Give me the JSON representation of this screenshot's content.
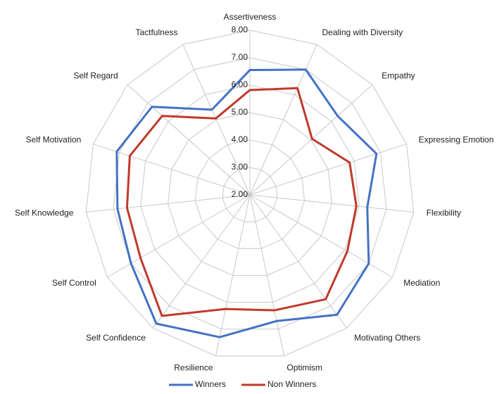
{
  "chart_data": {
    "type": "radar",
    "categories": [
      "Assertiveness",
      "Dealing with Diversity",
      "Empathy",
      "Expressing Emotion",
      "Flexibility",
      "Mediation",
      "Motivating Others",
      "Optimism",
      "Resilience",
      "Self Confidence",
      "Self Control",
      "Self Knowledge",
      "Self Motivation",
      "Self Regard",
      "Tactfulness"
    ],
    "series": [
      {
        "name": "Winners",
        "color": "#4472c4",
        "values": [
          6.55,
          7.0,
          6.3,
          6.85,
          6.3,
          7.0,
          7.4,
          6.7,
          7.3,
          7.8,
          7.0,
          6.85,
          7.1,
          6.8,
          5.4
        ]
      },
      {
        "name": "Non Winners",
        "color": "#c0392b",
        "values": [
          5.82,
          6.26,
          5.05,
          5.82,
          5.9,
          6.1,
          6.7,
          6.3,
          6.25,
          7.45,
          6.6,
          6.5,
          6.6,
          6.3,
          5.05
        ]
      }
    ],
    "ylim": [
      2,
      8
    ],
    "yticks": [
      {
        "value": 2,
        "label": "2.00"
      },
      {
        "value": 3,
        "label": "3.00"
      },
      {
        "value": 4,
        "label": "4.00"
      },
      {
        "value": 5,
        "label": "5.00"
      },
      {
        "value": 6,
        "label": "6.00"
      },
      {
        "value": 7,
        "label": "7.00"
      },
      {
        "value": 8,
        "label": "8.00"
      }
    ],
    "grid": true,
    "legend": "bottom"
  }
}
